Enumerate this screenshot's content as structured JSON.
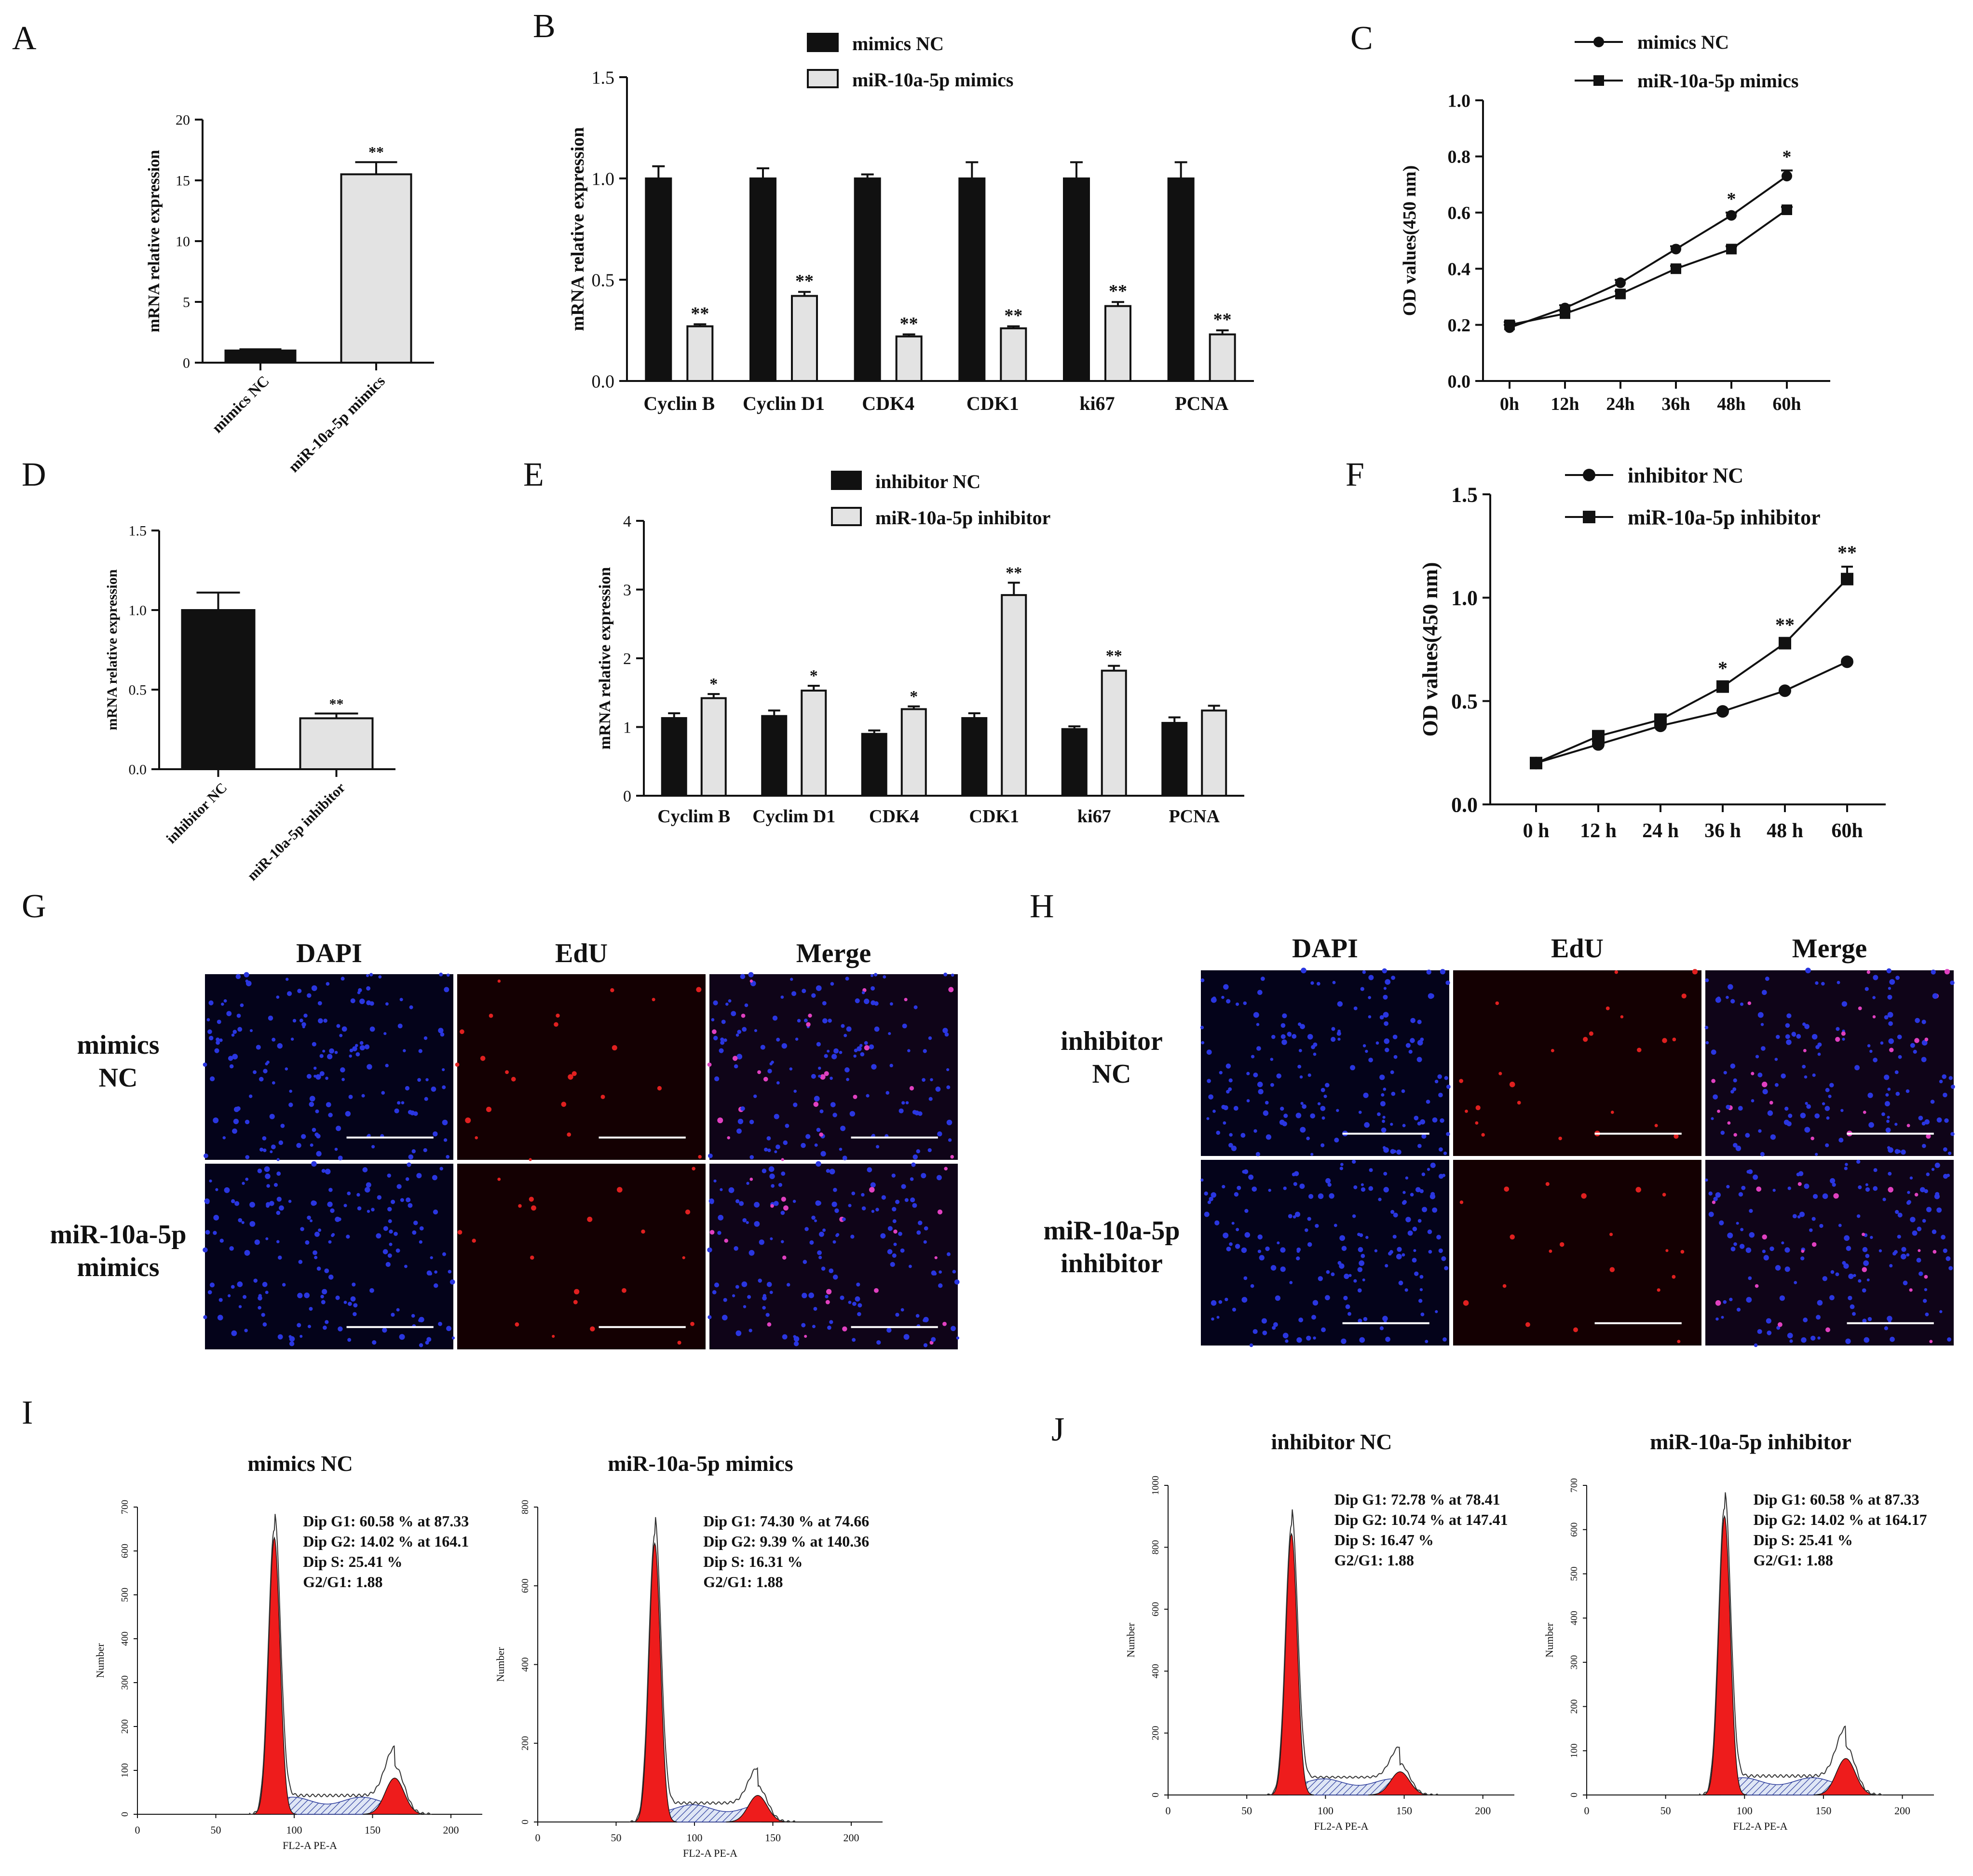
{
  "panels": {
    "A": "A",
    "B": "B",
    "C": "C",
    "D": "D",
    "E": "E",
    "F": "F",
    "G": "G",
    "H": "H",
    "I": "I",
    "J": "J"
  },
  "chart_data": [
    {
      "id": "A",
      "type": "bar",
      "ylabel": "mRNA relative expression",
      "categories": [
        "mimics NC",
        "miR-10a-5p mimics"
      ],
      "values": [
        1.0,
        15.5
      ],
      "errors": [
        0.1,
        1.0
      ],
      "colors": [
        "#111111",
        "#e3e3e3"
      ],
      "sig": [
        "",
        "**"
      ],
      "ylim": [
        0,
        20
      ],
      "yticks": [
        "0",
        "5",
        "10",
        "15",
        "20"
      ]
    },
    {
      "id": "B",
      "type": "bar",
      "ylabel": "mRNA relative expression",
      "categories": [
        "Cyclin B",
        "Cyclin D1",
        "CDK4",
        "CDK1",
        "ki67",
        "PCNA"
      ],
      "series": [
        {
          "name": "mimics NC",
          "color": "#111111",
          "values": [
            1.0,
            1.0,
            1.0,
            1.0,
            1.0,
            1.0
          ],
          "errors": [
            0.06,
            0.05,
            0.02,
            0.08,
            0.08,
            0.08
          ],
          "sig": [
            "",
            "",
            "",
            "",
            "",
            ""
          ]
        },
        {
          "name": "miR-10a-5p mimics",
          "color": "#e3e3e3",
          "values": [
            0.27,
            0.42,
            0.22,
            0.26,
            0.37,
            0.23
          ],
          "errors": [
            0.01,
            0.02,
            0.01,
            0.01,
            0.02,
            0.02
          ],
          "sig": [
            "**",
            "**",
            "**",
            "**",
            "**",
            "**"
          ]
        }
      ],
      "ylim": [
        0,
        1.5
      ],
      "yticks": [
        "0.0",
        "0.5",
        "1.0",
        "1.5"
      ]
    },
    {
      "id": "C",
      "type": "line",
      "ylabel": "OD values(450 nm)",
      "categories": [
        "0h",
        "12h",
        "24h",
        "36h",
        "48h",
        "60h"
      ],
      "series": [
        {
          "name": "mimics NC",
          "marker": "circle",
          "values": [
            0.19,
            0.26,
            0.35,
            0.47,
            0.59,
            0.73
          ],
          "errors": [
            0.01,
            0.01,
            0.01,
            0.01,
            0.01,
            0.02
          ]
        },
        {
          "name": "miR-10a-5p mimics",
          "marker": "square",
          "values": [
            0.2,
            0.24,
            0.31,
            0.4,
            0.47,
            0.61
          ],
          "errors": [
            0.01,
            0.01,
            0.01,
            0.01,
            0.01,
            0.01
          ]
        }
      ],
      "sig": [
        "",
        "",
        "",
        "",
        "*",
        "*"
      ],
      "ylim": [
        0,
        1.0
      ],
      "yticks": [
        "0.0",
        "0.2",
        "0.4",
        "0.6",
        "0.8",
        "1.0"
      ]
    },
    {
      "id": "D",
      "type": "bar",
      "ylabel": "mRNA relative expression",
      "categories": [
        "inhibitor NC",
        "miR-10a-5p inhibitor"
      ],
      "values": [
        1.0,
        0.32
      ],
      "errors": [
        0.11,
        0.03
      ],
      "colors": [
        "#111111",
        "#e3e3e3"
      ],
      "sig": [
        "",
        "**"
      ],
      "ylim": [
        0,
        1.5
      ],
      "yticks": [
        "0.0",
        "0.5",
        "1.0",
        "1.5"
      ]
    },
    {
      "id": "E",
      "type": "bar",
      "ylabel": "mRNA relative expression",
      "categories": [
        "Cyclim B",
        "Cyclim D1",
        "CDK4",
        "CDK1",
        "ki67",
        "PCNA"
      ],
      "series": [
        {
          "name": "inhibitor NC",
          "color": "#111111",
          "values": [
            1.13,
            1.16,
            0.9,
            1.13,
            0.97,
            1.06
          ],
          "errors": [
            0.07,
            0.08,
            0.05,
            0.07,
            0.04,
            0.08
          ],
          "sig": [
            "",
            "",
            "",
            "",
            "",
            ""
          ]
        },
        {
          "name": "miR-10a-5p inhibitor",
          "color": "#e3e3e3",
          "values": [
            1.42,
            1.53,
            1.26,
            2.92,
            1.82,
            1.24
          ],
          "errors": [
            0.06,
            0.07,
            0.04,
            0.18,
            0.07,
            0.07
          ],
          "sig": [
            "*",
            "*",
            "*",
            "**",
            "**",
            ""
          ]
        }
      ],
      "ylim": [
        0,
        4
      ],
      "yticks": [
        "0",
        "1",
        "2",
        "3",
        "4"
      ]
    },
    {
      "id": "F",
      "type": "line",
      "ylabel": "OD values(450 nm)",
      "categories": [
        "0 h",
        "12 h",
        "24 h",
        "36 h",
        "48 h",
        "60h"
      ],
      "series": [
        {
          "name": "inhibitor NC",
          "marker": "circle",
          "values": [
            0.2,
            0.29,
            0.38,
            0.45,
            0.55,
            0.69
          ],
          "errors": [
            0.01,
            0.01,
            0.01,
            0.01,
            0.01,
            0.01
          ]
        },
        {
          "name": "miR-10a-5p inhibitor",
          "marker": "square",
          "values": [
            0.2,
            0.33,
            0.41,
            0.57,
            0.78,
            1.09
          ],
          "errors": [
            0.01,
            0.01,
            0.01,
            0.02,
            0.02,
            0.06
          ]
        }
      ],
      "sig": [
        "",
        "",
        "",
        "*",
        "**",
        "**"
      ],
      "ylim": [
        0,
        1.5
      ],
      "yticks": [
        "0.0",
        "0.5",
        "1.0",
        "1.5"
      ]
    },
    {
      "id": "I1",
      "type": "area",
      "title": "mimics NC",
      "xlabel": "FL2-A PE-A",
      "ylabel": "Number",
      "ylim": [
        0,
        700
      ],
      "xlim": [
        0,
        220
      ],
      "xticks": [
        "0",
        "50",
        "100",
        "150",
        "200"
      ],
      "yticks": [
        "0",
        "100",
        "200",
        "300",
        "400",
        "500",
        "600",
        "700"
      ],
      "g1_pos": 87.33,
      "g1_peak": 650,
      "g2_pos": 164.1,
      "g2_peak": 110,
      "stats": [
        "Dip G1: 60.58 % at 87.33",
        "Dip G2: 14.02 % at 164.1",
        "Dip S: 25.41 %",
        "G2/G1: 1.88"
      ]
    },
    {
      "id": "I2",
      "type": "area",
      "title": "miR-10a-5p mimics",
      "xlabel": "FL2-A PE-A",
      "ylabel": "Number",
      "ylim": [
        0,
        800
      ],
      "xlim": [
        0,
        220
      ],
      "xticks": [
        "0",
        "50",
        "100",
        "150",
        "200"
      ],
      "yticks": [
        "0",
        "200",
        "400",
        "600",
        "800"
      ],
      "g1_pos": 74.66,
      "g1_peak": 730,
      "g2_pos": 140.36,
      "g2_peak": 90,
      "stats": [
        "Dip G1: 74.30 % at 74.66",
        "Dip G2: 9.39 % at 140.36",
        "Dip S: 16.31 %",
        "G2/G1: 1.88"
      ]
    },
    {
      "id": "J1",
      "type": "area",
      "title": "inhibitor NC",
      "xlabel": "FL2-A PE-A",
      "ylabel": "Number",
      "ylim": [
        0,
        1000
      ],
      "xlim": [
        0,
        220
      ],
      "xticks": [
        "0",
        "50",
        "100",
        "150",
        "200"
      ],
      "yticks": [
        "0",
        "200",
        "400",
        "600",
        "800",
        "1000"
      ],
      "g1_pos": 78.41,
      "g1_peak": 870,
      "g2_pos": 147.41,
      "g2_peak": 100,
      "stats": [
        "Dip G1: 72.78 % at 78.41",
        "Dip G2: 10.74 % at 147.41",
        "Dip S: 16.47 %",
        "G2/G1: 1.88"
      ]
    },
    {
      "id": "J2",
      "type": "area",
      "title": "miR-10a-5p inhibitor",
      "xlabel": "FL2-A PE-A",
      "ylabel": "Number",
      "ylim": [
        0,
        700
      ],
      "xlim": [
        0,
        220
      ],
      "xticks": [
        "0",
        "50",
        "100",
        "150",
        "200"
      ],
      "yticks": [
        "0",
        "100",
        "200",
        "300",
        "400",
        "500",
        "600",
        "700"
      ],
      "g1_pos": 87.33,
      "g1_peak": 650,
      "g2_pos": 164.17,
      "g2_peak": 110,
      "stats": [
        "Dip G1: 60.58 % at 87.33",
        "Dip G2: 14.02 % at 164.17",
        "Dip S: 25.41 %",
        "G2/G1: 1.88"
      ]
    }
  ],
  "microscopy": {
    "G": {
      "columns": [
        "DAPI",
        "EdU",
        "Merge"
      ],
      "rows": [
        [
          "mimics",
          "NC"
        ],
        [
          "miR-10a-5p",
          "mimics"
        ]
      ]
    },
    "H": {
      "columns": [
        "DAPI",
        "EdU",
        "Merge"
      ],
      "rows": [
        [
          "inhibitor",
          "NC"
        ],
        [
          "miR-10a-5p",
          "inhibitor"
        ]
      ]
    }
  }
}
